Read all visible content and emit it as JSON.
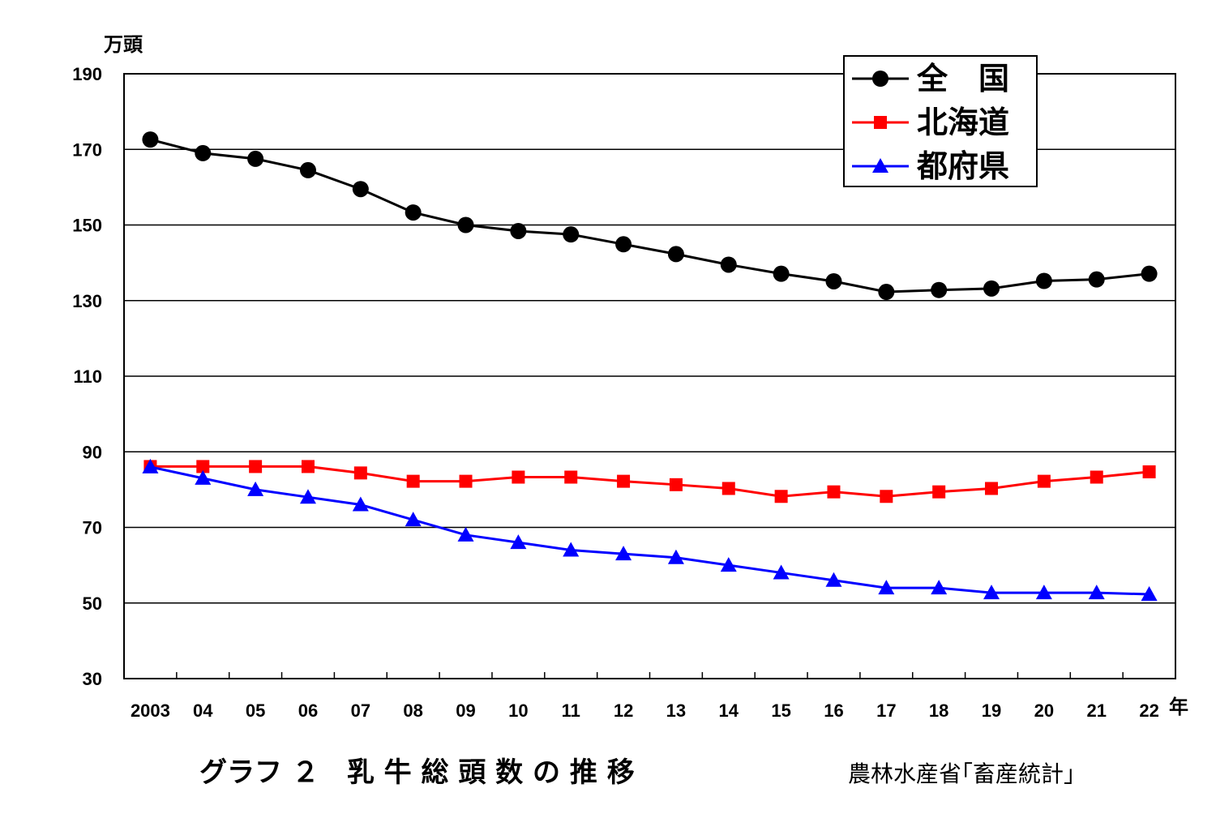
{
  "chart_data": {
    "type": "line",
    "title": "グラフ ２　乳 牛 総 頭 数 の 推 移",
    "source": "農林水産省｢畜産統計｣",
    "ylabel": "万頭",
    "xlabel": "年",
    "ylim": [
      30,
      190
    ],
    "yticks": [
      30,
      50,
      70,
      90,
      110,
      130,
      150,
      170,
      190
    ],
    "grid": true,
    "legend_position": "top-right",
    "categories": [
      "2003",
      "04",
      "05",
      "06",
      "07",
      "08",
      "09",
      "10",
      "11",
      "12",
      "13",
      "14",
      "15",
      "16",
      "17",
      "18",
      "19",
      "20",
      "21",
      "22"
    ],
    "series": [
      {
        "name": "全　国",
        "color": "#000000",
        "marker": "circle",
        "values": [
          172.6,
          169.0,
          167.5,
          164.5,
          159.5,
          153.3,
          150.0,
          148.4,
          147.5,
          144.9,
          142.3,
          139.5,
          137.1,
          135.1,
          132.3,
          132.8,
          133.2,
          135.2,
          135.6,
          137.1
        ]
      },
      {
        "name": "北海道",
        "color": "#ff0000",
        "marker": "square",
        "values": [
          86.1,
          86.1,
          86.1,
          86.1,
          84.4,
          82.2,
          82.2,
          83.3,
          83.3,
          82.2,
          81.3,
          80.3,
          78.2,
          79.4,
          78.2,
          79.4,
          80.3,
          82.2,
          83.3,
          84.7
        ]
      },
      {
        "name": "都府県",
        "color": "#0000ff",
        "marker": "triangle",
        "values": [
          86.0,
          83.0,
          80.0,
          78.0,
          76.0,
          72.0,
          68.0,
          66.0,
          64.0,
          63.0,
          62.0,
          60.0,
          58.0,
          56.0,
          54.0,
          54.0,
          52.7,
          52.7,
          52.7,
          52.3
        ]
      }
    ]
  }
}
